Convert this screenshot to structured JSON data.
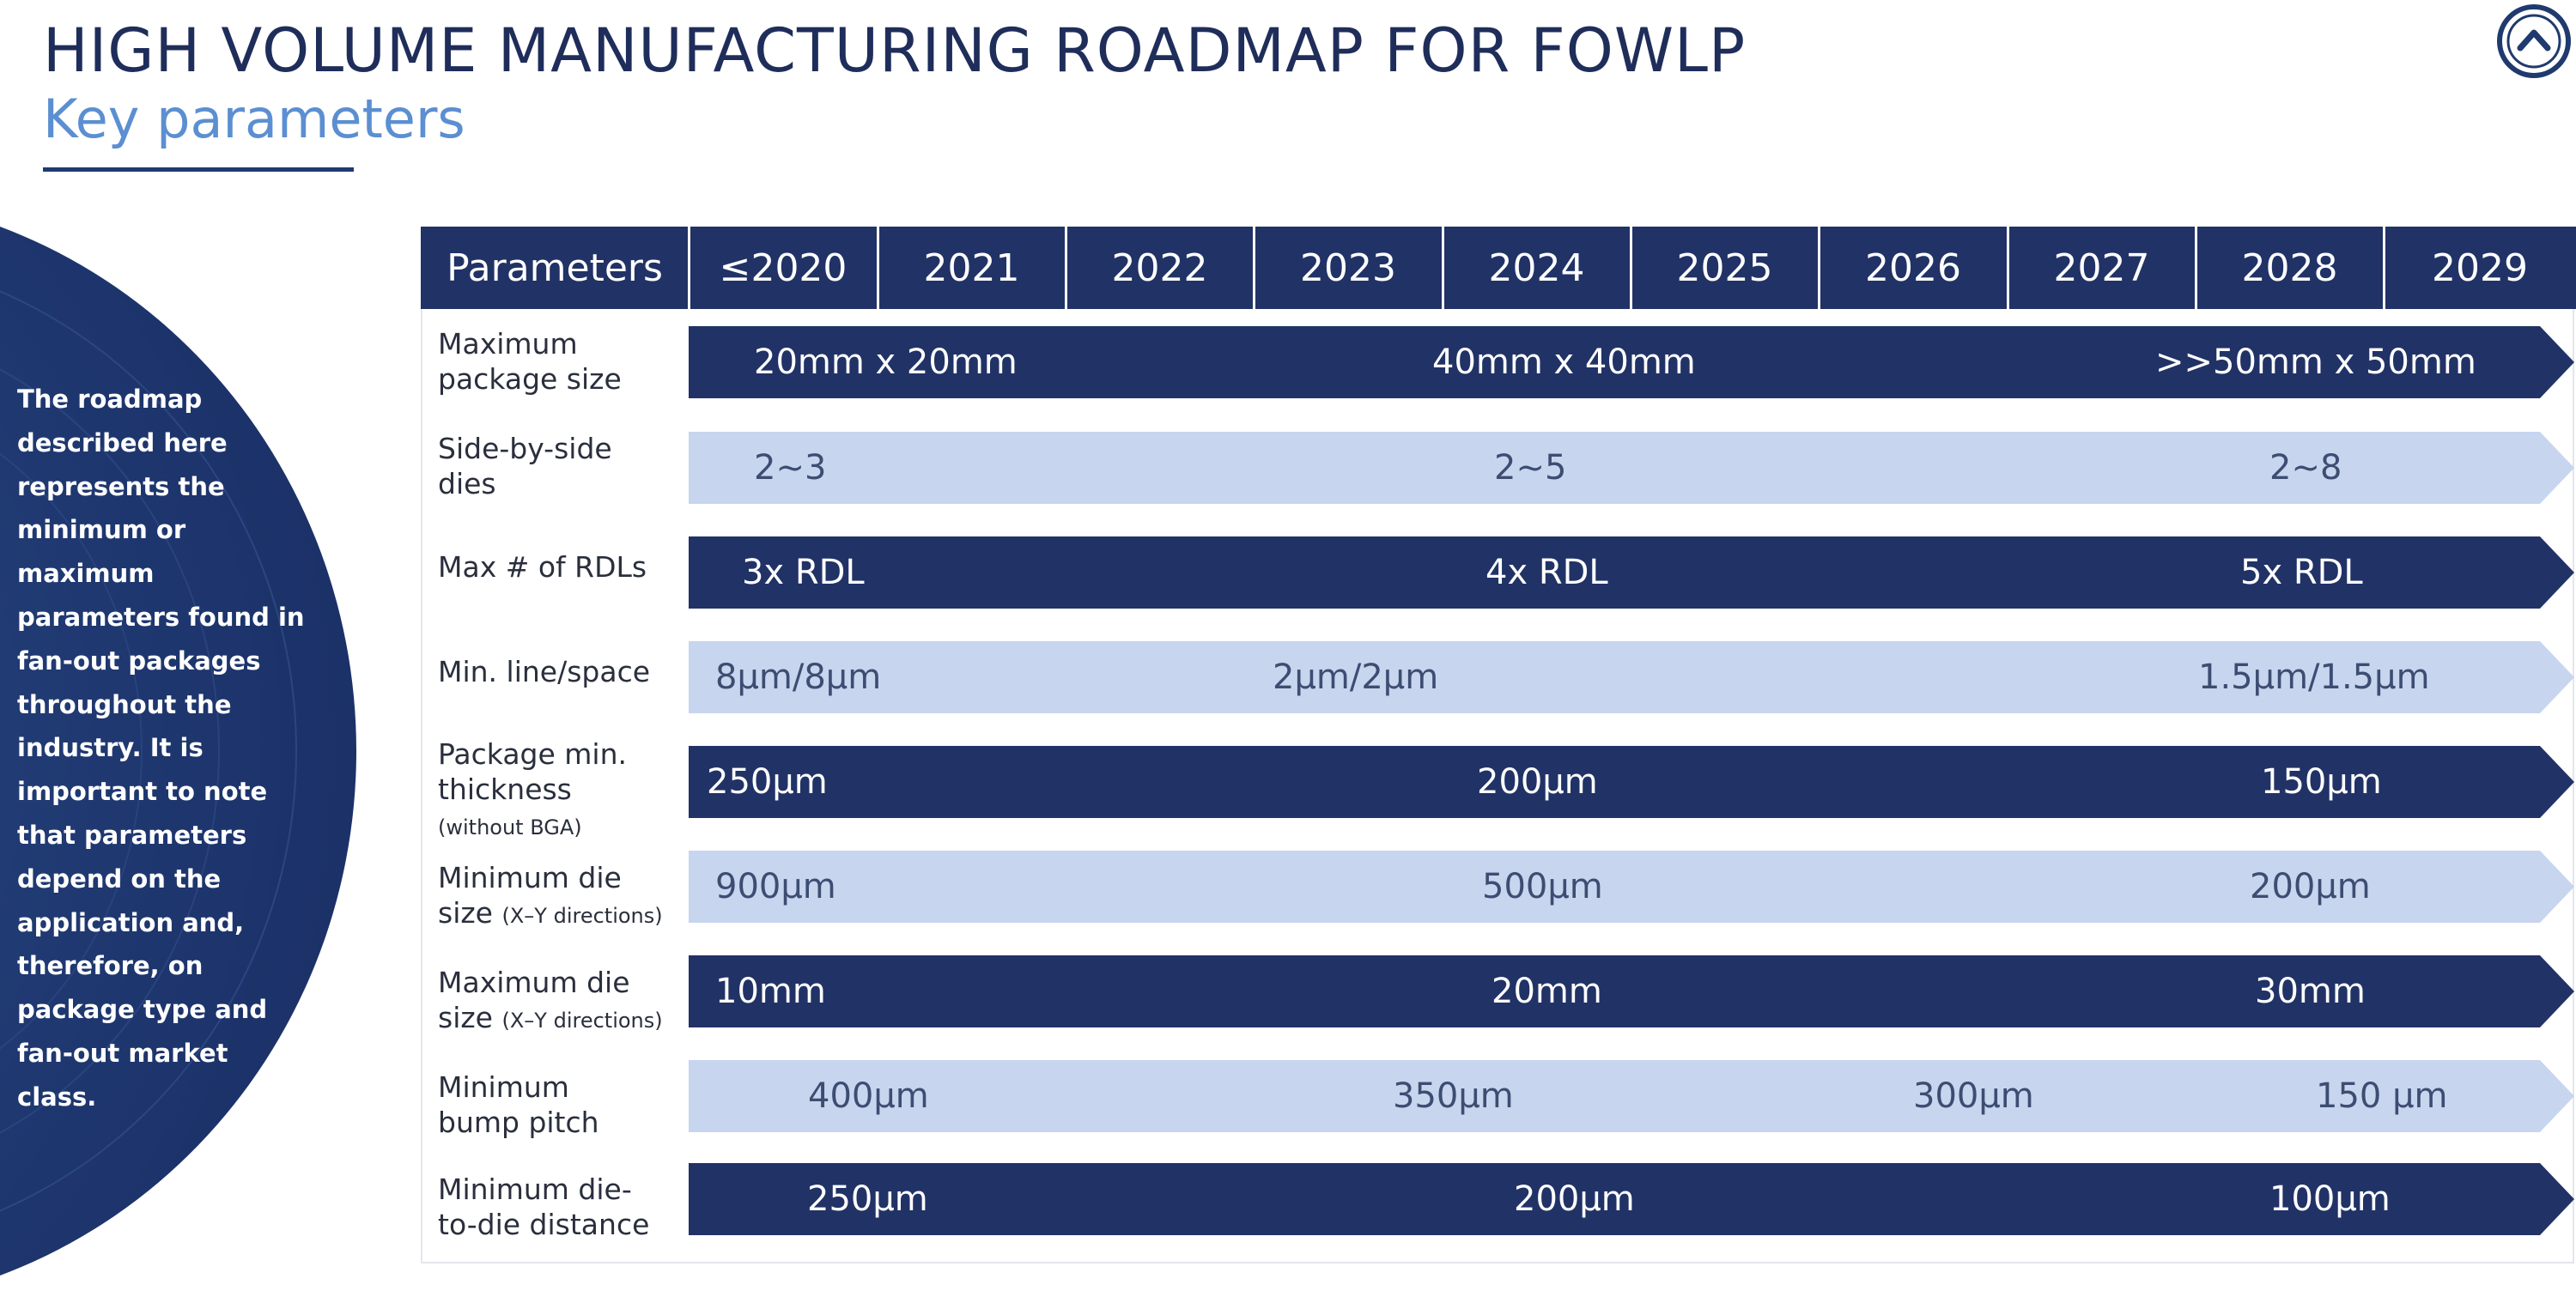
{
  "header": {
    "title": "HIGH VOLUME MANUFACTURING ROADMAP FOR FOWLP",
    "subtitle": "Key parameters"
  },
  "side_note": {
    "text": "The roadmap described here represents the minimum or maximum parameters found in fan-out packages throughout the industry. It is important to note that parameters depend on the application and, therefore, on package type and fan-out market class."
  },
  "table": {
    "columns": [
      "Parameters",
      "≤2020",
      "2021",
      "2022",
      "2023",
      "2024",
      "2025",
      "2026",
      "2027",
      "2028",
      "2029"
    ],
    "rows": [
      {
        "label": "Maximum\npackage size",
        "label_small": "",
        "style": "dark",
        "values": [
          "20mm x 20mm",
          "40mm x 40mm",
          ">>50mm x 50mm"
        ]
      },
      {
        "label": "Side-by-side\ndies",
        "label_small": "",
        "style": "light",
        "values": [
          "2~3",
          "2~5",
          "2~8"
        ]
      },
      {
        "label": "Max # of RDLs",
        "label_small": "",
        "style": "dark",
        "values": [
          "3x RDL",
          "4x RDL",
          "5x RDL"
        ]
      },
      {
        "label": "Min. line/space",
        "label_small": "",
        "style": "light",
        "values": [
          "8μm/8μm",
          "2μm/2μm",
          "1.5μm/1.5μm"
        ]
      },
      {
        "label": "Package min.\nthickness",
        "label_small": "(without BGA)",
        "style": "dark",
        "values": [
          "250μm",
          "200μm",
          "150μm"
        ]
      },
      {
        "label": "Minimum die\nsize",
        "label_small": "(X–Y directions)",
        "style": "light",
        "values": [
          "900μm",
          "500μm",
          "200μm"
        ]
      },
      {
        "label": "Maximum die\nsize",
        "label_small": "(X–Y directions)",
        "style": "dark",
        "values": [
          "10mm",
          "20mm",
          "30mm"
        ]
      },
      {
        "label": "Minimum\nbump pitch",
        "label_small": "",
        "style": "light",
        "values": [
          "400μm",
          "350μm",
          "300μm",
          "150 μm"
        ]
      },
      {
        "label": "Minimum die-\nto-die distance",
        "label_small": "",
        "style": "dark",
        "values": [
          "250μm",
          "200μm",
          "100μm"
        ]
      }
    ]
  },
  "colors": {
    "dark_band": "#213266",
    "light_band": "#c7d5ef",
    "title": "#1f2d5a",
    "subtitle": "#5b8fd1",
    "circle": "#1f3a6e"
  },
  "icons": {
    "logo": "chevron-up-circle-icon"
  }
}
